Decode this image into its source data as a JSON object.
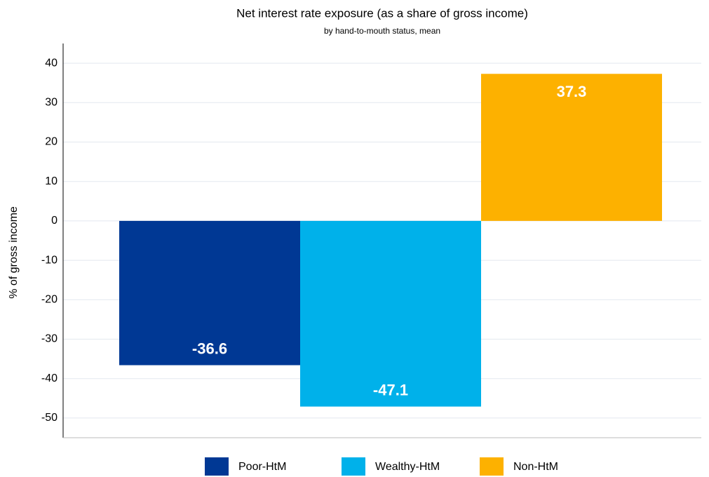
{
  "chart_data": {
    "type": "bar",
    "title": "Net interest rate exposure (as a share of gross income)",
    "subtitle": "by hand-to-mouth status, mean",
    "ylabel": "% of gross income",
    "series": [
      {
        "name": "Poor-HtM",
        "color": "#003894",
        "values": [
          -36.6
        ]
      },
      {
        "name": "Wealthy-HtM",
        "color": "#00b1ea",
        "values": [
          -47.1
        ]
      },
      {
        "name": "Non-HtM",
        "color": "#fdb100",
        "values": [
          37.3
        ]
      }
    ],
    "ylim": [
      -55,
      45
    ],
    "yticks": [
      -50,
      -40,
      -30,
      -20,
      -10,
      0,
      10,
      20,
      30,
      40
    ],
    "grid": true,
    "legend": "bottom"
  }
}
